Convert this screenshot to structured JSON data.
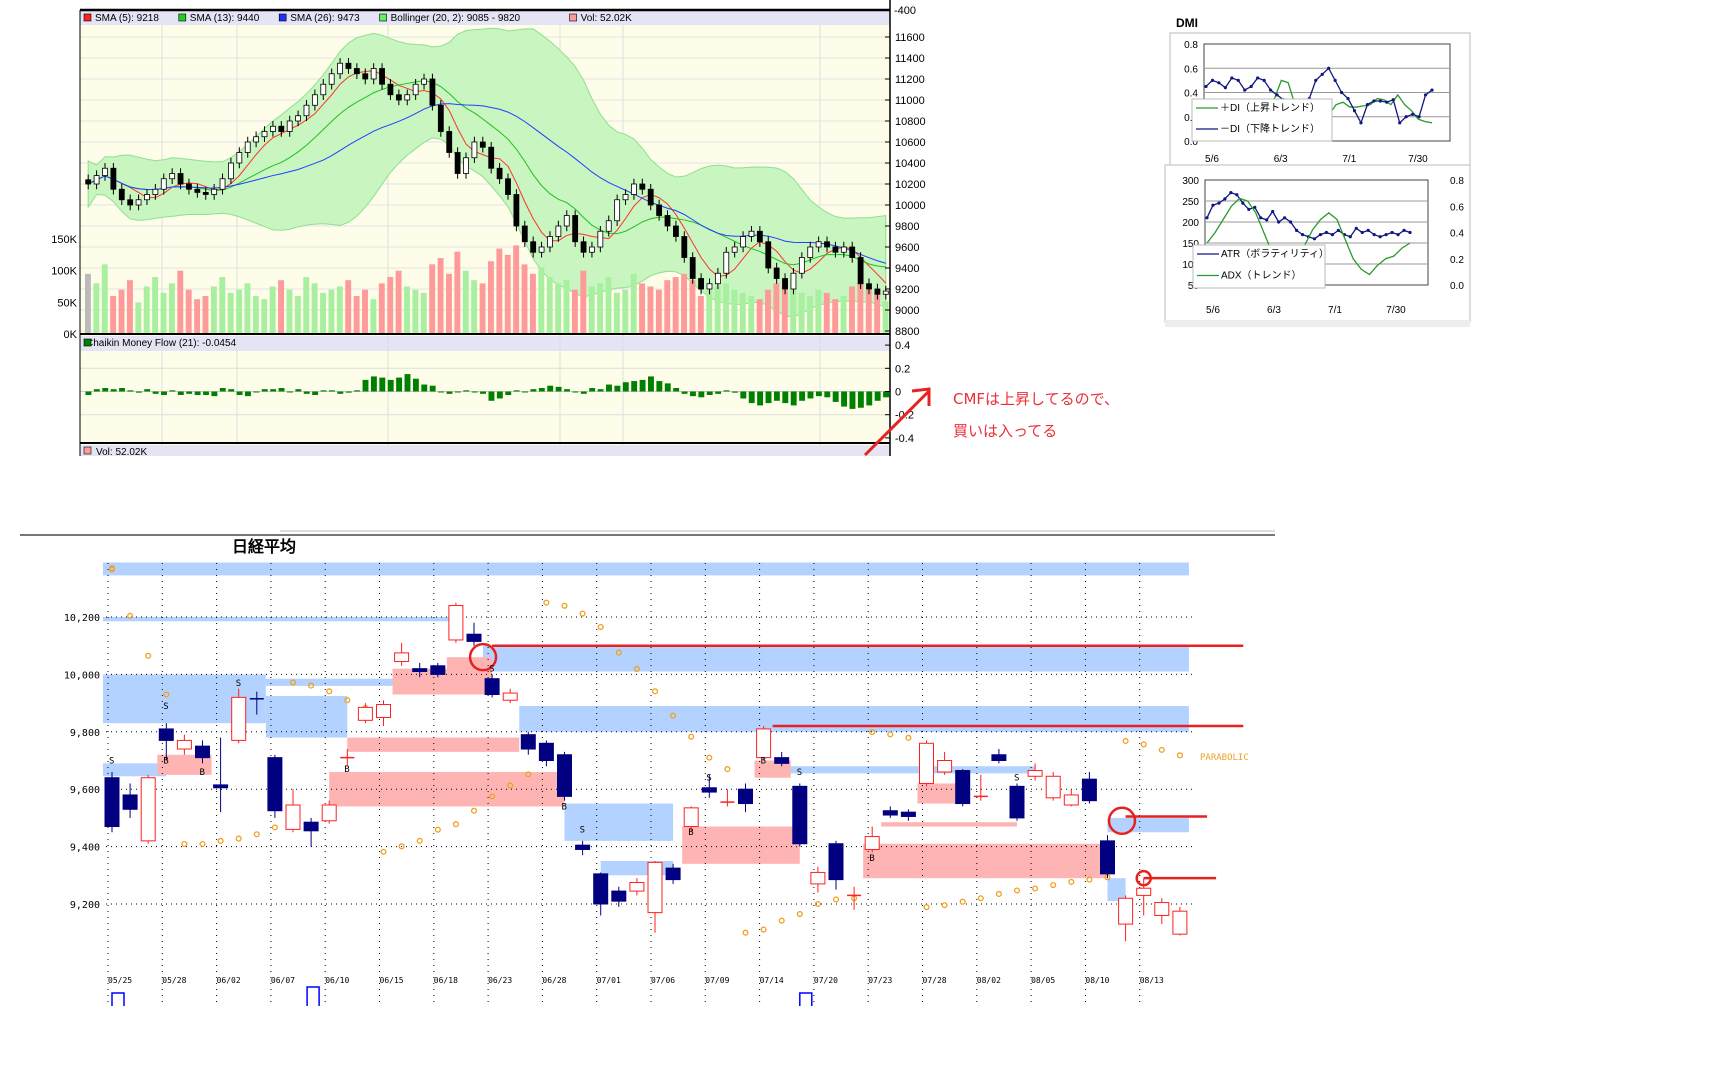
{
  "top_chart": {
    "legend": [
      {
        "label": "SMA (5): 9218",
        "color": "#ff2020"
      },
      {
        "label": "SMA (13): 9440",
        "color": "#20d020"
      },
      {
        "label": "SMA (26): 9473",
        "color": "#2030ff"
      },
      {
        "label": "Bollinger (20, 2): 9085 - 9820",
        "color": "#60f060"
      },
      {
        "label": "Vol: 52.02K",
        "color": "#ff9a9a"
      }
    ],
    "top_axis_label": "-400",
    "price_ticks": [
      "11600",
      "11400",
      "11200",
      "11000",
      "10800",
      "10600",
      "10400",
      "10200",
      "10000",
      "9800",
      "9600",
      "9400",
      "9200",
      "9000",
      "8800"
    ],
    "volume_ticks": [
      "150K",
      "100K",
      "50K",
      "0K"
    ],
    "cmf_legend": "Chaikin Money Flow (21): -0.0454",
    "cmf_color": "#008000",
    "cmf_ticks": [
      "0.4",
      "0.2",
      "0",
      "-0.2",
      "-0.4"
    ],
    "vol_legend": "Vol: 52.02K",
    "closes": [
      10200,
      10280,
      10350,
      10150,
      10050,
      10000,
      10050,
      10100,
      10150,
      10250,
      10300,
      10200,
      10150,
      10120,
      10100,
      10150,
      10250,
      10400,
      10500,
      10600,
      10650,
      10700,
      10750,
      10700,
      10800,
      10850,
      10950,
      11050,
      11150,
      11250,
      11350,
      11300,
      11250,
      11200,
      11300,
      11150,
      11050,
      11000,
      11050,
      11150,
      11200,
      10950,
      10700,
      10500,
      10300,
      10450,
      10600,
      10550,
      10350,
      10250,
      10100,
      9800,
      9650,
      9550,
      9600,
      9700,
      9800,
      9900,
      9650,
      9550,
      9600,
      9750,
      9850,
      10050,
      10100,
      10200,
      10150,
      10000,
      9900,
      9800,
      9700,
      9500,
      9300,
      9200,
      9250,
      9350,
      9550,
      9600,
      9700,
      9750,
      9650,
      9400,
      9300,
      9200,
      9350,
      9500,
      9600,
      9650,
      9600,
      9550,
      9600,
      9500,
      9250,
      9200,
      9150,
      9180
    ],
    "volumes_k": [
      95,
      80,
      110,
      60,
      70,
      85,
      50,
      75,
      90,
      65,
      80,
      100,
      70,
      55,
      60,
      75,
      90,
      65,
      70,
      80,
      60,
      55,
      75,
      85,
      70,
      60,
      90,
      80,
      65,
      70,
      75,
      85,
      60,
      70,
      55,
      80,
      90,
      100,
      75,
      70,
      65,
      110,
      120,
      95,
      130,
      100,
      85,
      80,
      115,
      135,
      125,
      140,
      110,
      95,
      105,
      90,
      80,
      85,
      70,
      100,
      75,
      80,
      90,
      65,
      70,
      95,
      80,
      75,
      70,
      85,
      90,
      95,
      85,
      60,
      70,
      75,
      80,
      70,
      65,
      60,
      55,
      70,
      80,
      85,
      75,
      65,
      60,
      70,
      65,
      55,
      60,
      75,
      80,
      70,
      65,
      52
    ],
    "cmf": [
      -0.03,
      0.02,
      0.03,
      0.02,
      0.03,
      0.01,
      -0.01,
      0.02,
      -0.02,
      -0.03,
      0.01,
      -0.03,
      -0.02,
      -0.03,
      -0.03,
      -0.04,
      0.03,
      0.02,
      -0.03,
      -0.04,
      0.0,
      0.02,
      0.02,
      0.03,
      0.0,
      0.02,
      -0.02,
      -0.03,
      0.01,
      0.01,
      -0.02,
      -0.01,
      0.01,
      0.1,
      0.13,
      0.12,
      0.1,
      0.12,
      0.15,
      0.11,
      0.06,
      0.05,
      0.0,
      -0.02,
      0.0,
      0.01,
      0.0,
      -0.02,
      -0.08,
      -0.06,
      -0.03,
      0.01,
      0.0,
      0.02,
      0.03,
      0.05,
      0.04,
      0.02,
      0.0,
      -0.02,
      0.03,
      0.02,
      0.06,
      0.05,
      0.08,
      0.09,
      0.1,
      0.13,
      0.09,
      0.07,
      0.03,
      -0.02,
      -0.04,
      -0.05,
      -0.03,
      -0.02,
      0.01,
      -0.01,
      -0.06,
      -0.1,
      -0.12,
      -0.1,
      -0.08,
      -0.1,
      -0.12,
      -0.08,
      -0.06,
      -0.04,
      -0.05,
      -0.09,
      -0.13,
      -0.15,
      -0.14,
      -0.12,
      -0.08,
      -0.05
    ]
  },
  "dmi": {
    "title": "DMI",
    "top": {
      "y_ticks": [
        "0.8",
        "0.6",
        "0.4",
        "0.2",
        "0.0"
      ],
      "x_ticks": [
        "5/6",
        "6/3",
        "7/1",
        "7/30"
      ],
      "plus_di": {
        "label": "＋DI（上昇トレンド）",
        "color": "#2a9a2a",
        "values": [
          0.3,
          0.28,
          0.27,
          0.25,
          0.24,
          0.26,
          0.25,
          0.27,
          0.3,
          0.32,
          0.35,
          0.5,
          0.48,
          0.3,
          0.1,
          0.05,
          0.1,
          0.2,
          0.22,
          0.3,
          0.32,
          0.28,
          0.28,
          0.29,
          0.3,
          0.35,
          0.34,
          0.3,
          0.38,
          0.3,
          0.25,
          0.18,
          0.16,
          0.15
        ]
      },
      "minus_di": {
        "label": "－DI（下降トレンド）",
        "color": "#101880",
        "values": [
          0.45,
          0.5,
          0.48,
          0.44,
          0.52,
          0.5,
          0.42,
          0.45,
          0.52,
          0.5,
          0.42,
          0.38,
          0.34,
          0.32,
          0.3,
          0.28,
          0.35,
          0.5,
          0.55,
          0.6,
          0.5,
          0.4,
          0.35,
          0.25,
          0.15,
          0.3,
          0.33,
          0.33,
          0.32,
          0.34,
          0.15,
          0.2,
          0.22,
          0.2,
          0.38,
          0.42
        ]
      }
    },
    "bottom": {
      "left_ticks": [
        "300",
        "250",
        "200",
        "150",
        "100",
        "50"
      ],
      "right_ticks": [
        "0.8",
        "0.6",
        "0.4",
        "0.2",
        "0.0"
      ],
      "x_ticks": [
        "5/6",
        "6/3",
        "7/1",
        "7/30"
      ],
      "atr": {
        "label": "ATR（ボラティリティ）",
        "color": "#101880",
        "values": [
          210,
          240,
          245,
          255,
          270,
          265,
          245,
          230,
          235,
          210,
          205,
          225,
          200,
          210,
          200,
          180,
          170,
          165,
          160,
          170,
          175,
          170,
          180,
          170,
          165,
          185,
          175,
          180,
          170,
          165,
          170,
          175,
          170,
          180,
          175
        ]
      },
      "adx": {
        "label": "ADX（トレンド）",
        "color": "#2a9a2a",
        "values": [
          0.32,
          0.4,
          0.5,
          0.6,
          0.66,
          0.64,
          0.55,
          0.4,
          0.25,
          0.15,
          0.1,
          0.2,
          0.3,
          0.42,
          0.5,
          0.55,
          0.5,
          0.35,
          0.2,
          0.12,
          0.08,
          0.15,
          0.2,
          0.22,
          0.28,
          0.32
        ]
      }
    }
  },
  "annotation": {
    "line1": "CMFは上昇してるので、",
    "line2": "買いは入ってる",
    "color": "#e8303a"
  },
  "bottom_chart": {
    "title": "日経平均",
    "y_ticks": [
      {
        "label": "10,200",
        "v": 10200
      },
      {
        "label": "10,000",
        "v": 10000
      },
      {
        "label": "9,800",
        "v": 9800
      },
      {
        "label": "9,600",
        "v": 9600
      },
      {
        "label": "9,400",
        "v": 9400
      },
      {
        "label": "9,200",
        "v": 9200
      }
    ],
    "x_ticks": [
      "05/25",
      "05/28",
      "06/02",
      "06/07",
      "06/10",
      "06/15",
      "06/18",
      "06/23",
      "06/28",
      "07/01",
      "07/06",
      "07/09",
      "07/14",
      "07/20",
      "07/23",
      "07/28",
      "08/02",
      "08/05",
      "08/10",
      "08/13"
    ],
    "parabolic_label": "PARABOLIC",
    "colors": {
      "up": "#ff2020",
      "down": "#000080",
      "resistance": "#b4d2ff",
      "support": "#ffb4b4",
      "parabolic": "#f0a020",
      "signal": "#e82020"
    },
    "candles": [
      [
        9640,
        9470,
        9660,
        9450
      ],
      [
        9580,
        9530,
        9620,
        9500
      ],
      [
        9420,
        9640,
        9650,
        9410
      ],
      [
        9810,
        9770,
        9830,
        9700
      ],
      [
        9740,
        9770,
        9790,
        9720
      ],
      [
        9750,
        9710,
        9770,
        9690
      ],
      [
        9615,
        9605,
        9780,
        9520
      ],
      [
        9770,
        9920,
        9950,
        9760
      ],
      [
        9915,
        9910,
        9940,
        9860
      ],
      [
        9710,
        9525,
        9720,
        9500
      ],
      [
        9460,
        9545,
        9600,
        9450
      ],
      [
        9485,
        9455,
        9500,
        9400
      ],
      [
        9490,
        9545,
        9560,
        9480
      ],
      [
        9710,
        9712,
        9740,
        9680
      ],
      [
        9840,
        9885,
        9900,
        9830
      ],
      [
        9850,
        9895,
        9910,
        9820
      ],
      [
        10045,
        10075,
        10110,
        10030
      ],
      [
        10020,
        10010,
        10040,
        9990
      ],
      [
        10030,
        10000,
        10040,
        9990
      ],
      [
        10120,
        10240,
        10250,
        10110
      ],
      [
        10140,
        10115,
        10180,
        10100
      ],
      [
        9985,
        9930,
        10000,
        9920
      ],
      [
        9910,
        9935,
        9950,
        9900
      ],
      [
        9790,
        9740,
        9800,
        9720
      ],
      [
        9760,
        9700,
        9770,
        9680
      ],
      [
        9720,
        9575,
        9730,
        9560
      ],
      [
        9405,
        9390,
        9420,
        9370
      ],
      [
        9305,
        9200,
        9310,
        9160
      ],
      [
        9245,
        9210,
        9260,
        9190
      ],
      [
        9245,
        9275,
        9290,
        9230
      ],
      [
        9170,
        9345,
        9350,
        9100
      ],
      [
        9325,
        9285,
        9340,
        9270
      ],
      [
        9470,
        9535,
        9540,
        9450
      ],
      [
        9605,
        9590,
        9650,
        9570
      ],
      [
        9555,
        9557,
        9600,
        9540
      ],
      [
        9600,
        9550,
        9620,
        9520
      ],
      [
        9710,
        9810,
        9820,
        9700
      ],
      [
        9710,
        9690,
        9730,
        9680
      ],
      [
        9610,
        9410,
        9620,
        9400
      ],
      [
        9270,
        9310,
        9330,
        9240
      ],
      [
        9410,
        9285,
        9420,
        9250
      ],
      [
        9230,
        9232,
        9260,
        9180
      ],
      [
        9390,
        9435,
        9470,
        9380
      ],
      [
        9525,
        9510,
        9540,
        9500
      ],
      [
        9520,
        9505,
        9530,
        9490
      ],
      [
        9620,
        9760,
        9770,
        9610
      ],
      [
        9660,
        9700,
        9730,
        9650
      ],
      [
        9665,
        9550,
        9670,
        9540
      ],
      [
        9575,
        9577,
        9650,
        9560
      ],
      [
        9720,
        9700,
        9740,
        9690
      ],
      [
        9610,
        9500,
        9620,
        9490
      ],
      [
        9645,
        9665,
        9690,
        9630
      ],
      [
        9570,
        9645,
        9660,
        9560
      ],
      [
        9545,
        9580,
        9600,
        9540
      ],
      [
        9635,
        9560,
        9660,
        9550
      ],
      [
        9420,
        9305,
        9440,
        9290
      ],
      [
        9130,
        9220,
        9230,
        9070
      ],
      [
        9230,
        9255,
        9290,
        9160
      ],
      [
        9160,
        9205,
        9220,
        9130
      ],
      [
        9095,
        9175,
        9190,
        9090
      ]
    ],
    "parabolic": [
      10366,
      10204,
      10065,
      9930,
      9409,
      9409,
      9420,
      9428,
      9443,
      9467,
      9972,
      9961,
      9941,
      9910,
      9883,
      9382,
      9401,
      9420,
      9459,
      9478,
      9525,
      9575,
      9613,
      9652,
      10250,
      10239,
      10212,
      10165,
      10076,
      10019,
      9941,
      9856,
      9783,
      9710,
      9670,
      9100,
      9111,
      9142,
      9165,
      9200,
      9216,
      9220,
      9799,
      9791,
      9779,
      9189,
      9196,
      9208,
      9220,
      9235,
      9247,
      9254,
      9266,
      9277,
      9285,
      9293,
      9768,
      9756,
      9737,
      9718
    ],
    "zones": [
      {
        "kind": "resistance",
        "from": -0.5,
        "to": 59.5,
        "hi": 10390,
        "lo": 10345
      },
      {
        "kind": "resistance",
        "from": -0.5,
        "to": 19,
        "hi": 10200,
        "lo": 10185
      },
      {
        "kind": "resistance",
        "from": -0.5,
        "to": 8.5,
        "hi": 10000,
        "lo": 9830
      },
      {
        "kind": "resistance",
        "from": 8.5,
        "to": 17,
        "hi": 9985,
        "lo": 9960
      },
      {
        "kind": "resistance",
        "from": 8.5,
        "to": 13,
        "hi": 9925,
        "lo": 9780
      },
      {
        "kind": "resistance",
        "from": 20.5,
        "to": 59.5,
        "hi": 10100,
        "lo": 10010
      },
      {
        "kind": "resistance",
        "from": 22.5,
        "to": 59.5,
        "hi": 9890,
        "lo": 9800
      },
      {
        "kind": "resistance",
        "from": 25,
        "to": 31,
        "hi": 9550,
        "lo": 9420
      },
      {
        "kind": "resistance",
        "from": 27,
        "to": 31,
        "hi": 9350,
        "lo": 9300
      },
      {
        "kind": "resistance",
        "from": 37,
        "to": 51,
        "hi": 9680,
        "lo": 9655
      },
      {
        "kind": "resistance",
        "from": -0.5,
        "to": 3,
        "hi": 9690,
        "lo": 9645
      },
      {
        "kind": "resistance",
        "from": 55,
        "to": 59.5,
        "hi": 9500,
        "lo": 9450
      },
      {
        "kind": "resistance",
        "from": 55,
        "to": 56,
        "hi": 9290,
        "lo": 9210
      },
      {
        "kind": "support",
        "from": 2.5,
        "to": 5.5,
        "hi": 9720,
        "lo": 9650
      },
      {
        "kind": "support",
        "from": 13,
        "to": 22.5,
        "hi": 9780,
        "lo": 9730
      },
      {
        "kind": "support",
        "from": 12,
        "to": 25,
        "hi": 9660,
        "lo": 9540
      },
      {
        "kind": "support",
        "from": 15.5,
        "to": 21,
        "hi": 10020,
        "lo": 9930
      },
      {
        "kind": "support",
        "from": 18.5,
        "to": 21,
        "hi": 10060,
        "lo": 9990
      },
      {
        "kind": "support",
        "from": 31.5,
        "to": 38,
        "hi": 9470,
        "lo": 9340
      },
      {
        "kind": "support",
        "from": 35.5,
        "to": 37.5,
        "hi": 9700,
        "lo": 9640
      },
      {
        "kind": "support",
        "from": 44.5,
        "to": 47,
        "hi": 9620,
        "lo": 9550
      },
      {
        "kind": "support",
        "from": 41.5,
        "to": 55,
        "hi": 9410,
        "lo": 9290
      },
      {
        "kind": "support",
        "from": 42.5,
        "to": 50,
        "hi": 9485,
        "lo": 9470
      }
    ],
    "signal_lines": [
      {
        "from": 21,
        "to": 62.5,
        "v": 10100
      },
      {
        "from": 36.5,
        "to": 62.5,
        "v": 9820
      },
      {
        "from": 56,
        "to": 60.5,
        "v": 9505
      },
      {
        "from": 57,
        "to": 61,
        "v": 9290
      }
    ],
    "signal_circles": [
      {
        "i": 20.5,
        "v": 10060,
        "big": true
      },
      {
        "i": 55.8,
        "v": 9490,
        "big": true
      },
      {
        "i": 57,
        "v": 9290,
        "big": false
      }
    ],
    "marks": [
      {
        "i": 0,
        "v": 9690,
        "t": "S"
      },
      {
        "i": 3,
        "v": 9880,
        "t": "S"
      },
      {
        "i": 7,
        "v": 9960,
        "t": "S"
      },
      {
        "i": 21,
        "v": 10010,
        "t": "S"
      },
      {
        "i": 26,
        "v": 9450,
        "t": "S"
      },
      {
        "i": 33,
        "v": 9630,
        "t": "S"
      },
      {
        "i": 38,
        "v": 9650,
        "t": "S"
      },
      {
        "i": 50,
        "v": 9630,
        "t": "S"
      },
      {
        "i": 3,
        "v": 9690,
        "t": "B"
      },
      {
        "i": 5,
        "v": 9650,
        "t": "B"
      },
      {
        "i": 13,
        "v": 9660,
        "t": "B"
      },
      {
        "i": 25,
        "v": 9530,
        "t": "B"
      },
      {
        "i": 32,
        "v": 9440,
        "t": "B"
      },
      {
        "i": 36,
        "v": 9690,
        "t": "B"
      },
      {
        "i": 42,
        "v": 9350,
        "t": "B"
      }
    ]
  }
}
